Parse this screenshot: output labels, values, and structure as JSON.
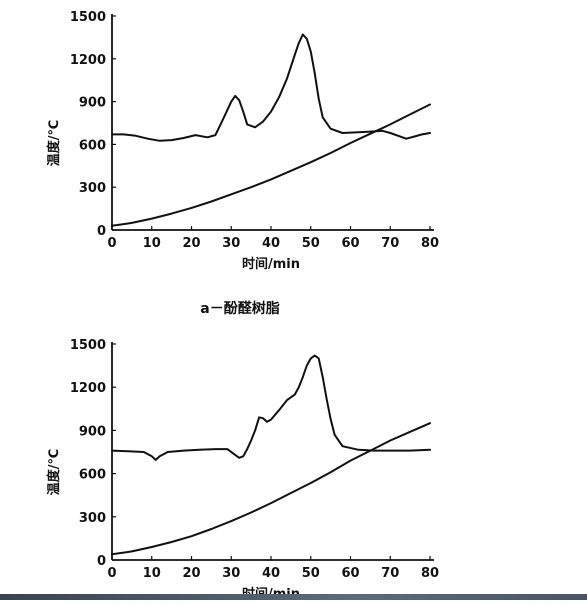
{
  "chart_data": [
    {
      "type": "line",
      "title": "",
      "caption": "a－酚醛树脂",
      "xlabel": "时间/min",
      "ylabel": "温度/℃",
      "xlim": [
        0,
        80
      ],
      "ylim": [
        0,
        1500
      ],
      "xticks": [
        0,
        10,
        20,
        30,
        40,
        50,
        60,
        70,
        80
      ],
      "yticks": [
        0,
        300,
        600,
        900,
        1200,
        1500
      ],
      "grid": false,
      "series": [
        {
          "x": [
            0,
            3,
            6,
            9,
            12,
            15,
            18,
            21,
            24,
            26,
            28,
            30,
            31,
            32,
            33,
            34,
            36,
            38,
            40,
            42,
            44,
            46,
            47,
            48,
            49,
            50,
            51,
            52,
            53,
            55,
            58,
            62,
            65,
            68,
            70,
            72,
            74,
            76,
            78,
            80
          ],
          "y": [
            670,
            670,
            660,
            640,
            625,
            630,
            645,
            665,
            650,
            665,
            780,
            900,
            940,
            910,
            830,
            740,
            720,
            760,
            830,
            930,
            1060,
            1230,
            1310,
            1370,
            1340,
            1250,
            1100,
            920,
            790,
            710,
            680,
            685,
            690,
            695,
            680,
            660,
            640,
            655,
            670,
            680
          ]
        },
        {
          "x": [
            0,
            5,
            10,
            15,
            20,
            25,
            30,
            35,
            40,
            45,
            50,
            55,
            60,
            65,
            70,
            75,
            80
          ],
          "y": [
            30,
            50,
            80,
            115,
            155,
            200,
            250,
            300,
            355,
            415,
            475,
            540,
            610,
            675,
            740,
            810,
            880
          ]
        }
      ]
    },
    {
      "type": "line",
      "title": "",
      "xlabel": "时间/min",
      "ylabel": "温度/℃",
      "xlim": [
        0,
        80
      ],
      "ylim": [
        0,
        1500
      ],
      "xticks": [
        0,
        10,
        20,
        30,
        40,
        50,
        60,
        70,
        80
      ],
      "yticks": [
        0,
        300,
        600,
        900,
        1200,
        1500
      ],
      "grid": false,
      "series": [
        {
          "x": [
            0,
            4,
            8,
            10,
            11,
            12,
            14,
            18,
            22,
            26,
            29,
            31,
            32,
            33,
            34,
            35,
            36,
            37,
            38,
            39,
            40,
            42,
            44,
            46,
            47,
            48,
            49,
            50,
            51,
            52,
            53,
            54,
            55,
            56,
            58,
            62,
            66,
            70,
            75,
            80
          ],
          "y": [
            760,
            755,
            750,
            720,
            695,
            720,
            750,
            760,
            765,
            770,
            770,
            730,
            710,
            720,
            770,
            830,
            900,
            990,
            985,
            960,
            975,
            1040,
            1110,
            1150,
            1200,
            1270,
            1350,
            1400,
            1420,
            1400,
            1270,
            1120,
            980,
            870,
            790,
            765,
            760,
            760,
            760,
            765
          ]
        },
        {
          "x": [
            0,
            5,
            10,
            15,
            20,
            25,
            30,
            35,
            40,
            45,
            50,
            55,
            60,
            65,
            70,
            75,
            80
          ],
          "y": [
            40,
            60,
            90,
            125,
            165,
            215,
            270,
            330,
            395,
            465,
            535,
            610,
            690,
            760,
            830,
            890,
            950
          ]
        }
      ]
    }
  ]
}
